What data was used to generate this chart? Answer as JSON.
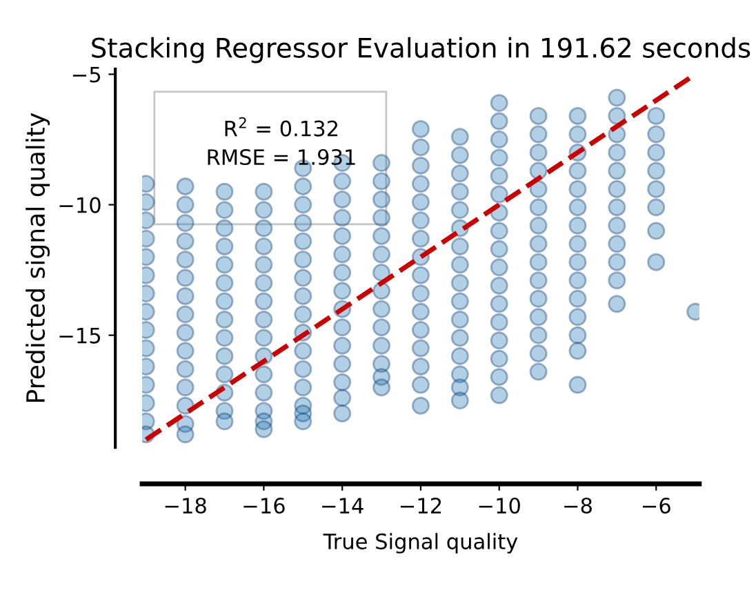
{
  "chart_data": {
    "type": "scatter",
    "title": "Stacking Regressor Evaluation in 191.62 seconds",
    "xlabel": "True Signal quality",
    "ylabel": "Predicted signal quality",
    "xlim": [
      -19.1,
      -4.9
    ],
    "ylim": [
      -19.3,
      -4.8
    ],
    "xticks": [
      -18,
      -16,
      -14,
      -12,
      -10,
      -8,
      -6
    ],
    "yticks": [
      -5,
      -10,
      -15
    ],
    "grid": false,
    "marker": "circle",
    "annotations": [
      "R$^{2}$ = 0.132",
      "RMSE = 1.931"
    ],
    "series": [
      {
        "type": "scatter",
        "color": "#1f77b4",
        "x": [
          -19,
          -19,
          -19,
          -19,
          -19,
          -19,
          -19,
          -19,
          -19,
          -19,
          -19,
          -19,
          -19,
          -19,
          -19,
          -18,
          -18,
          -18,
          -18,
          -18,
          -18,
          -18,
          -18,
          -18,
          -18,
          -18,
          -18,
          -18,
          -18,
          -18,
          -17,
          -17,
          -17,
          -17,
          -17,
          -17,
          -17,
          -17,
          -17,
          -17,
          -17,
          -17,
          -17,
          -17,
          -16,
          -16,
          -16,
          -16,
          -16,
          -16,
          -16,
          -16,
          -16,
          -16,
          -16,
          -16,
          -16,
          -16,
          -16,
          -15,
          -15,
          -15,
          -15,
          -15,
          -15,
          -15,
          -15,
          -15,
          -15,
          -15,
          -15,
          -15,
          -15,
          -15,
          -15,
          -14,
          -14,
          -14,
          -14,
          -14,
          -14,
          -14,
          -14,
          -14,
          -14,
          -14,
          -14,
          -14,
          -14,
          -14,
          -13,
          -13,
          -13,
          -13,
          -13,
          -13,
          -13,
          -13,
          -13,
          -13,
          -13,
          -13,
          -13,
          -13,
          -12,
          -12,
          -12,
          -12,
          -12,
          -12,
          -12,
          -12,
          -12,
          -12,
          -12,
          -12,
          -12,
          -12,
          -12,
          -12,
          -11,
          -11,
          -11,
          -11,
          -11,
          -11,
          -11,
          -11,
          -11,
          -11,
          -11,
          -11,
          -11,
          -11,
          -11,
          -11,
          -10,
          -10,
          -10,
          -10,
          -10,
          -10,
          -10,
          -10,
          -10,
          -10,
          -10,
          -10,
          -10,
          -10,
          -10,
          -10,
          -10,
          -9,
          -9,
          -9,
          -9,
          -9,
          -9,
          -9,
          -9,
          -9,
          -9,
          -9,
          -9,
          -9,
          -9,
          -9,
          -8,
          -8,
          -8,
          -8,
          -8,
          -8,
          -8,
          -8,
          -8,
          -8,
          -8,
          -8,
          -8,
          -8,
          -8,
          -7,
          -7,
          -7,
          -7,
          -7,
          -7,
          -7,
          -7,
          -7,
          -7,
          -7,
          -7,
          -6,
          -6,
          -6,
          -6,
          -6,
          -6,
          -6,
          -6,
          -5
        ],
        "values": [
          -9.2,
          -9.9,
          -10.6,
          -11.3,
          -12.0,
          -12.7,
          -13.4,
          -14.1,
          -14.8,
          -15.5,
          -16.2,
          -16.9,
          -17.6,
          -18.3,
          -18.8,
          -9.3,
          -10.0,
          -10.7,
          -11.4,
          -12.1,
          -12.8,
          -13.5,
          -14.2,
          -14.9,
          -15.6,
          -16.3,
          -17.0,
          -17.7,
          -18.4,
          -18.8,
          -9.5,
          -10.2,
          -10.9,
          -11.6,
          -12.3,
          -13.0,
          -13.7,
          -14.4,
          -15.1,
          -15.8,
          -16.5,
          -17.2,
          -17.9,
          -18.3,
          -9.5,
          -10.2,
          -10.9,
          -11.6,
          -12.3,
          -13.0,
          -13.7,
          -14.4,
          -15.1,
          -15.8,
          -16.5,
          -17.2,
          -17.9,
          -18.3,
          -18.6,
          -8.6,
          -9.3,
          -10.0,
          -10.7,
          -11.4,
          -12.1,
          -12.8,
          -13.5,
          -14.2,
          -14.9,
          -15.6,
          -16.3,
          -17.0,
          -17.7,
          -18.0,
          -18.3,
          -8.4,
          -9.1,
          -9.8,
          -10.5,
          -11.2,
          -11.9,
          -12.6,
          -13.3,
          -14.0,
          -14.7,
          -15.4,
          -16.1,
          -16.8,
          -17.4,
          -18.0,
          -8.4,
          -9.1,
          -9.8,
          -10.5,
          -11.2,
          -11.9,
          -12.6,
          -13.3,
          -14.0,
          -14.7,
          -15.4,
          -16.1,
          -16.6,
          -17.0,
          -7.1,
          -7.8,
          -8.5,
          -9.2,
          -9.9,
          -10.6,
          -11.3,
          -12.0,
          -12.7,
          -13.4,
          -14.1,
          -14.8,
          -15.5,
          -16.2,
          -16.9,
          -17.7,
          -7.4,
          -8.1,
          -8.8,
          -9.5,
          -10.2,
          -10.9,
          -11.6,
          -12.3,
          -13.0,
          -13.7,
          -14.4,
          -15.1,
          -15.8,
          -16.5,
          -17.0,
          -17.5,
          -6.1,
          -6.8,
          -7.5,
          -8.2,
          -8.9,
          -9.6,
          -10.3,
          -11.0,
          -11.7,
          -12.4,
          -13.1,
          -13.8,
          -14.5,
          -15.2,
          -15.9,
          -16.6,
          -17.3,
          -6.6,
          -7.3,
          -8.0,
          -8.7,
          -9.4,
          -10.1,
          -10.8,
          -11.5,
          -12.2,
          -12.9,
          -13.6,
          -14.3,
          -15.0,
          -15.7,
          -16.4,
          -6.6,
          -7.3,
          -8.0,
          -8.7,
          -9.4,
          -10.1,
          -10.8,
          -11.5,
          -12.2,
          -12.9,
          -13.6,
          -14.3,
          -15.0,
          -15.6,
          -16.9,
          -5.9,
          -6.6,
          -7.3,
          -8.0,
          -8.7,
          -9.4,
          -10.1,
          -10.8,
          -11.5,
          -12.2,
          -12.9,
          -13.8,
          -6.6,
          -7.3,
          -8.0,
          -8.7,
          -9.4,
          -10.1,
          -11.0,
          -12.2,
          -14.1
        ]
      },
      {
        "type": "line",
        "color": "#cc0000",
        "line_style": "dashed",
        "marker": "none",
        "x": [
          -19,
          -5
        ],
        "values": [
          -19,
          -5
        ]
      }
    ]
  }
}
